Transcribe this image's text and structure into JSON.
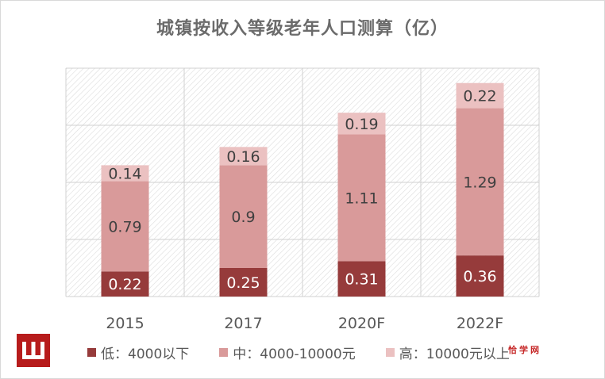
{
  "chart_data": {
    "type": "bar",
    "stacked": true,
    "title": "城镇按收入等级老年人口测算（亿）",
    "categories": [
      "2015",
      "2017",
      "2020F",
      "2022F"
    ],
    "series": [
      {
        "name": "低：4000以下",
        "values": [
          0.22,
          0.25,
          0.31,
          0.36
        ],
        "color": "#963b3b"
      },
      {
        "name": "中：4000-10000元",
        "values": [
          0.79,
          0.9,
          1.11,
          1.29
        ],
        "color": "#d99a9a"
      },
      {
        "name": "高：10000元以上",
        "values": [
          0.14,
          0.16,
          0.19,
          0.22
        ],
        "color": "#ebc1c1"
      }
    ],
    "ylim": [
      0,
      2.0
    ],
    "grid": true,
    "legend_position": "bottom"
  },
  "brand_text": "恰学网"
}
